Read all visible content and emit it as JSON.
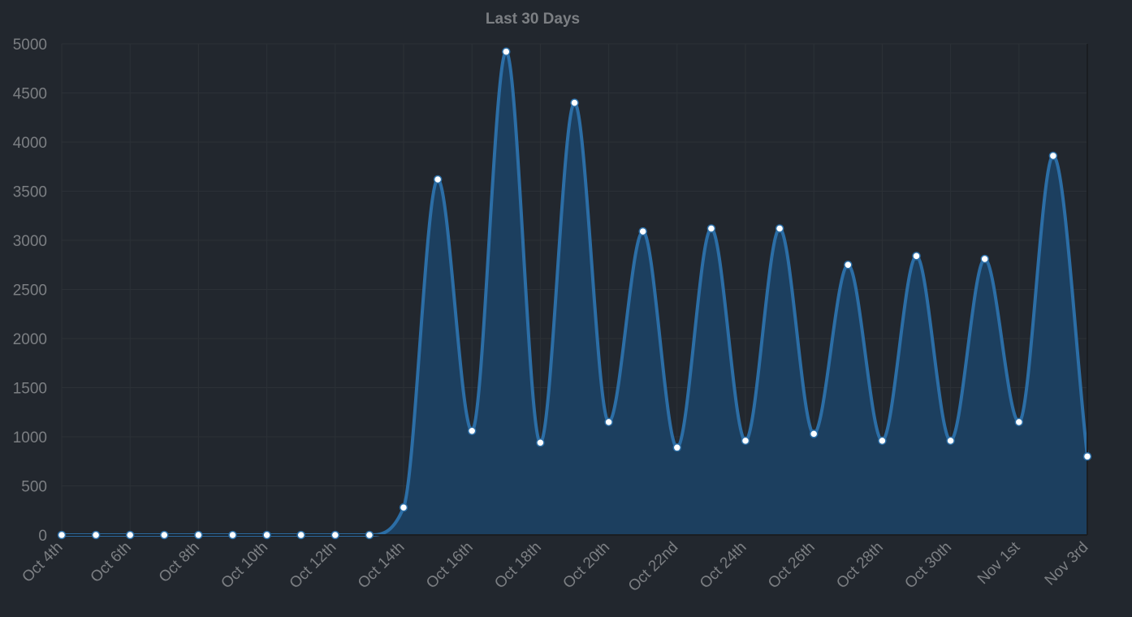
{
  "colors": {
    "background": "#22272e",
    "grid": "#2c3137",
    "text": "#7c7f83",
    "line": "#2c6ea6",
    "fill": "#1c3f5f",
    "point_fill": "#ffffff",
    "point_stroke": "#2c6ea6"
  },
  "chart_data": {
    "type": "area",
    "title": "Last 30 Days",
    "xlabel": "",
    "ylabel": "",
    "ylim": [
      0,
      5000
    ],
    "y_ticks": [
      0,
      500,
      1000,
      1500,
      2000,
      2500,
      3000,
      3500,
      4000,
      4500,
      5000
    ],
    "x_tick_labels": [
      "Oct 4th",
      "Oct 6th",
      "Oct 8th",
      "Oct 10th",
      "Oct 12th",
      "Oct 14th",
      "Oct 16th",
      "Oct 18th",
      "Oct 20th",
      "Oct 22nd",
      "Oct 24th",
      "Oct 26th",
      "Oct 28th",
      "Oct 30th",
      "Nov 1st",
      "Nov 3rd"
    ],
    "grid": true,
    "legend": "none",
    "x": [
      "Oct 4th",
      "Oct 5th",
      "Oct 6th",
      "Oct 7th",
      "Oct 8th",
      "Oct 9th",
      "Oct 10th",
      "Oct 11th",
      "Oct 12th",
      "Oct 13th",
      "Oct 14th",
      "Oct 15th",
      "Oct 16th",
      "Oct 17th",
      "Oct 18th",
      "Oct 19th",
      "Oct 20th",
      "Oct 21st",
      "Oct 22nd",
      "Oct 23rd",
      "Oct 24th",
      "Oct 25th",
      "Oct 26th",
      "Oct 27th",
      "Oct 28th",
      "Oct 29th",
      "Oct 30th",
      "Oct 31st",
      "Nov 1st",
      "Nov 2nd",
      "Nov 3rd"
    ],
    "series": [
      {
        "values": [
          0,
          0,
          0,
          0,
          0,
          0,
          0,
          0,
          0,
          0,
          280,
          3620,
          1060,
          4920,
          940,
          4400,
          1150,
          3090,
          890,
          3120,
          960,
          3120,
          1030,
          2750,
          960,
          2840,
          960,
          2810,
          1150,
          3860,
          800
        ]
      }
    ]
  }
}
